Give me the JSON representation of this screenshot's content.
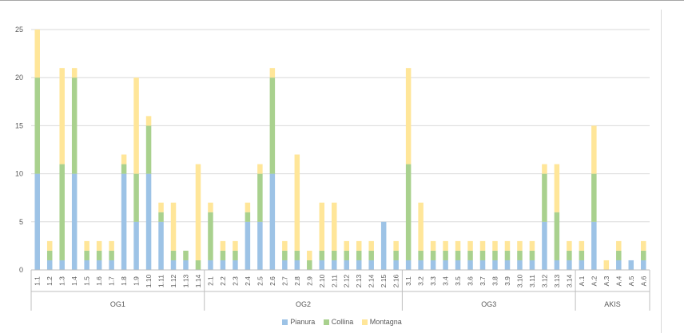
{
  "colors": {
    "pianura": "#9dc3e6",
    "collina": "#a9d18e",
    "montagna": "#ffe699",
    "grid": "#d9d9d9",
    "axis": "#bfbfbf"
  },
  "chart_data": {
    "type": "bar",
    "stacked": true,
    "ylim": [
      0,
      25
    ],
    "yticks": [
      0,
      5,
      10,
      15,
      20,
      25
    ],
    "grid": true,
    "legend_position": "bottom",
    "categories": [
      "1.1",
      "1.2",
      "1.3",
      "1.4",
      "1.5",
      "1.6",
      "1.7",
      "1.8",
      "1.9",
      "1.10",
      "1.11",
      "1.12",
      "1.13",
      "1.14",
      "2.1",
      "2.2",
      "2.3",
      "2.4",
      "2.5",
      "2.6",
      "2.7",
      "2.8",
      "2.9",
      "2.10",
      "2.11",
      "2.12",
      "2.13",
      "2.14",
      "2.15",
      "2.16",
      "3.1",
      "3.2",
      "3.3",
      "3.4",
      "3.5",
      "3.6",
      "3.7",
      "3.8",
      "3.9",
      "3.10",
      "3.11",
      "3.12",
      "3.13",
      "3.14",
      "A.1",
      "A.2",
      "A.3",
      "A.4",
      "A.5",
      "A.6"
    ],
    "groups": [
      {
        "label": "OG1",
        "count": 14
      },
      {
        "label": "OG2",
        "count": 16
      },
      {
        "label": "OG3",
        "count": 14
      },
      {
        "label": "AKIS",
        "count": 6
      }
    ],
    "series": [
      {
        "name": "Pianura",
        "color": "#9dc3e6",
        "values": [
          10,
          1,
          1,
          10,
          1,
          1,
          1,
          10,
          5,
          10,
          5,
          1,
          1,
          0,
          1,
          1,
          1,
          5,
          5,
          10,
          1,
          1,
          0,
          1,
          1,
          1,
          1,
          1,
          5,
          1,
          1,
          1,
          1,
          1,
          1,
          1,
          1,
          1,
          1,
          1,
          1,
          5,
          1,
          1,
          1,
          5,
          0,
          1,
          1,
          1
        ]
      },
      {
        "name": "Collina",
        "color": "#a9d18e",
        "values": [
          10,
          1,
          10,
          10,
          1,
          1,
          1,
          1,
          5,
          5,
          1,
          1,
          1,
          1,
          5,
          1,
          1,
          1,
          5,
          10,
          1,
          1,
          1,
          1,
          1,
          1,
          1,
          1,
          0,
          1,
          10,
          1,
          1,
          1,
          1,
          1,
          1,
          1,
          1,
          1,
          1,
          5,
          5,
          1,
          1,
          5,
          0,
          1,
          0,
          1
        ]
      },
      {
        "name": "Montagna",
        "color": "#ffe699",
        "values": [
          5,
          1,
          10,
          1,
          1,
          1,
          1,
          1,
          10,
          1,
          1,
          5,
          0,
          10,
          1,
          1,
          1,
          1,
          1,
          1,
          1,
          10,
          1,
          5,
          5,
          1,
          1,
          1,
          0,
          1,
          10,
          5,
          1,
          1,
          1,
          1,
          1,
          1,
          1,
          1,
          1,
          1,
          5,
          1,
          1,
          5,
          1,
          1,
          0,
          1
        ]
      }
    ]
  }
}
